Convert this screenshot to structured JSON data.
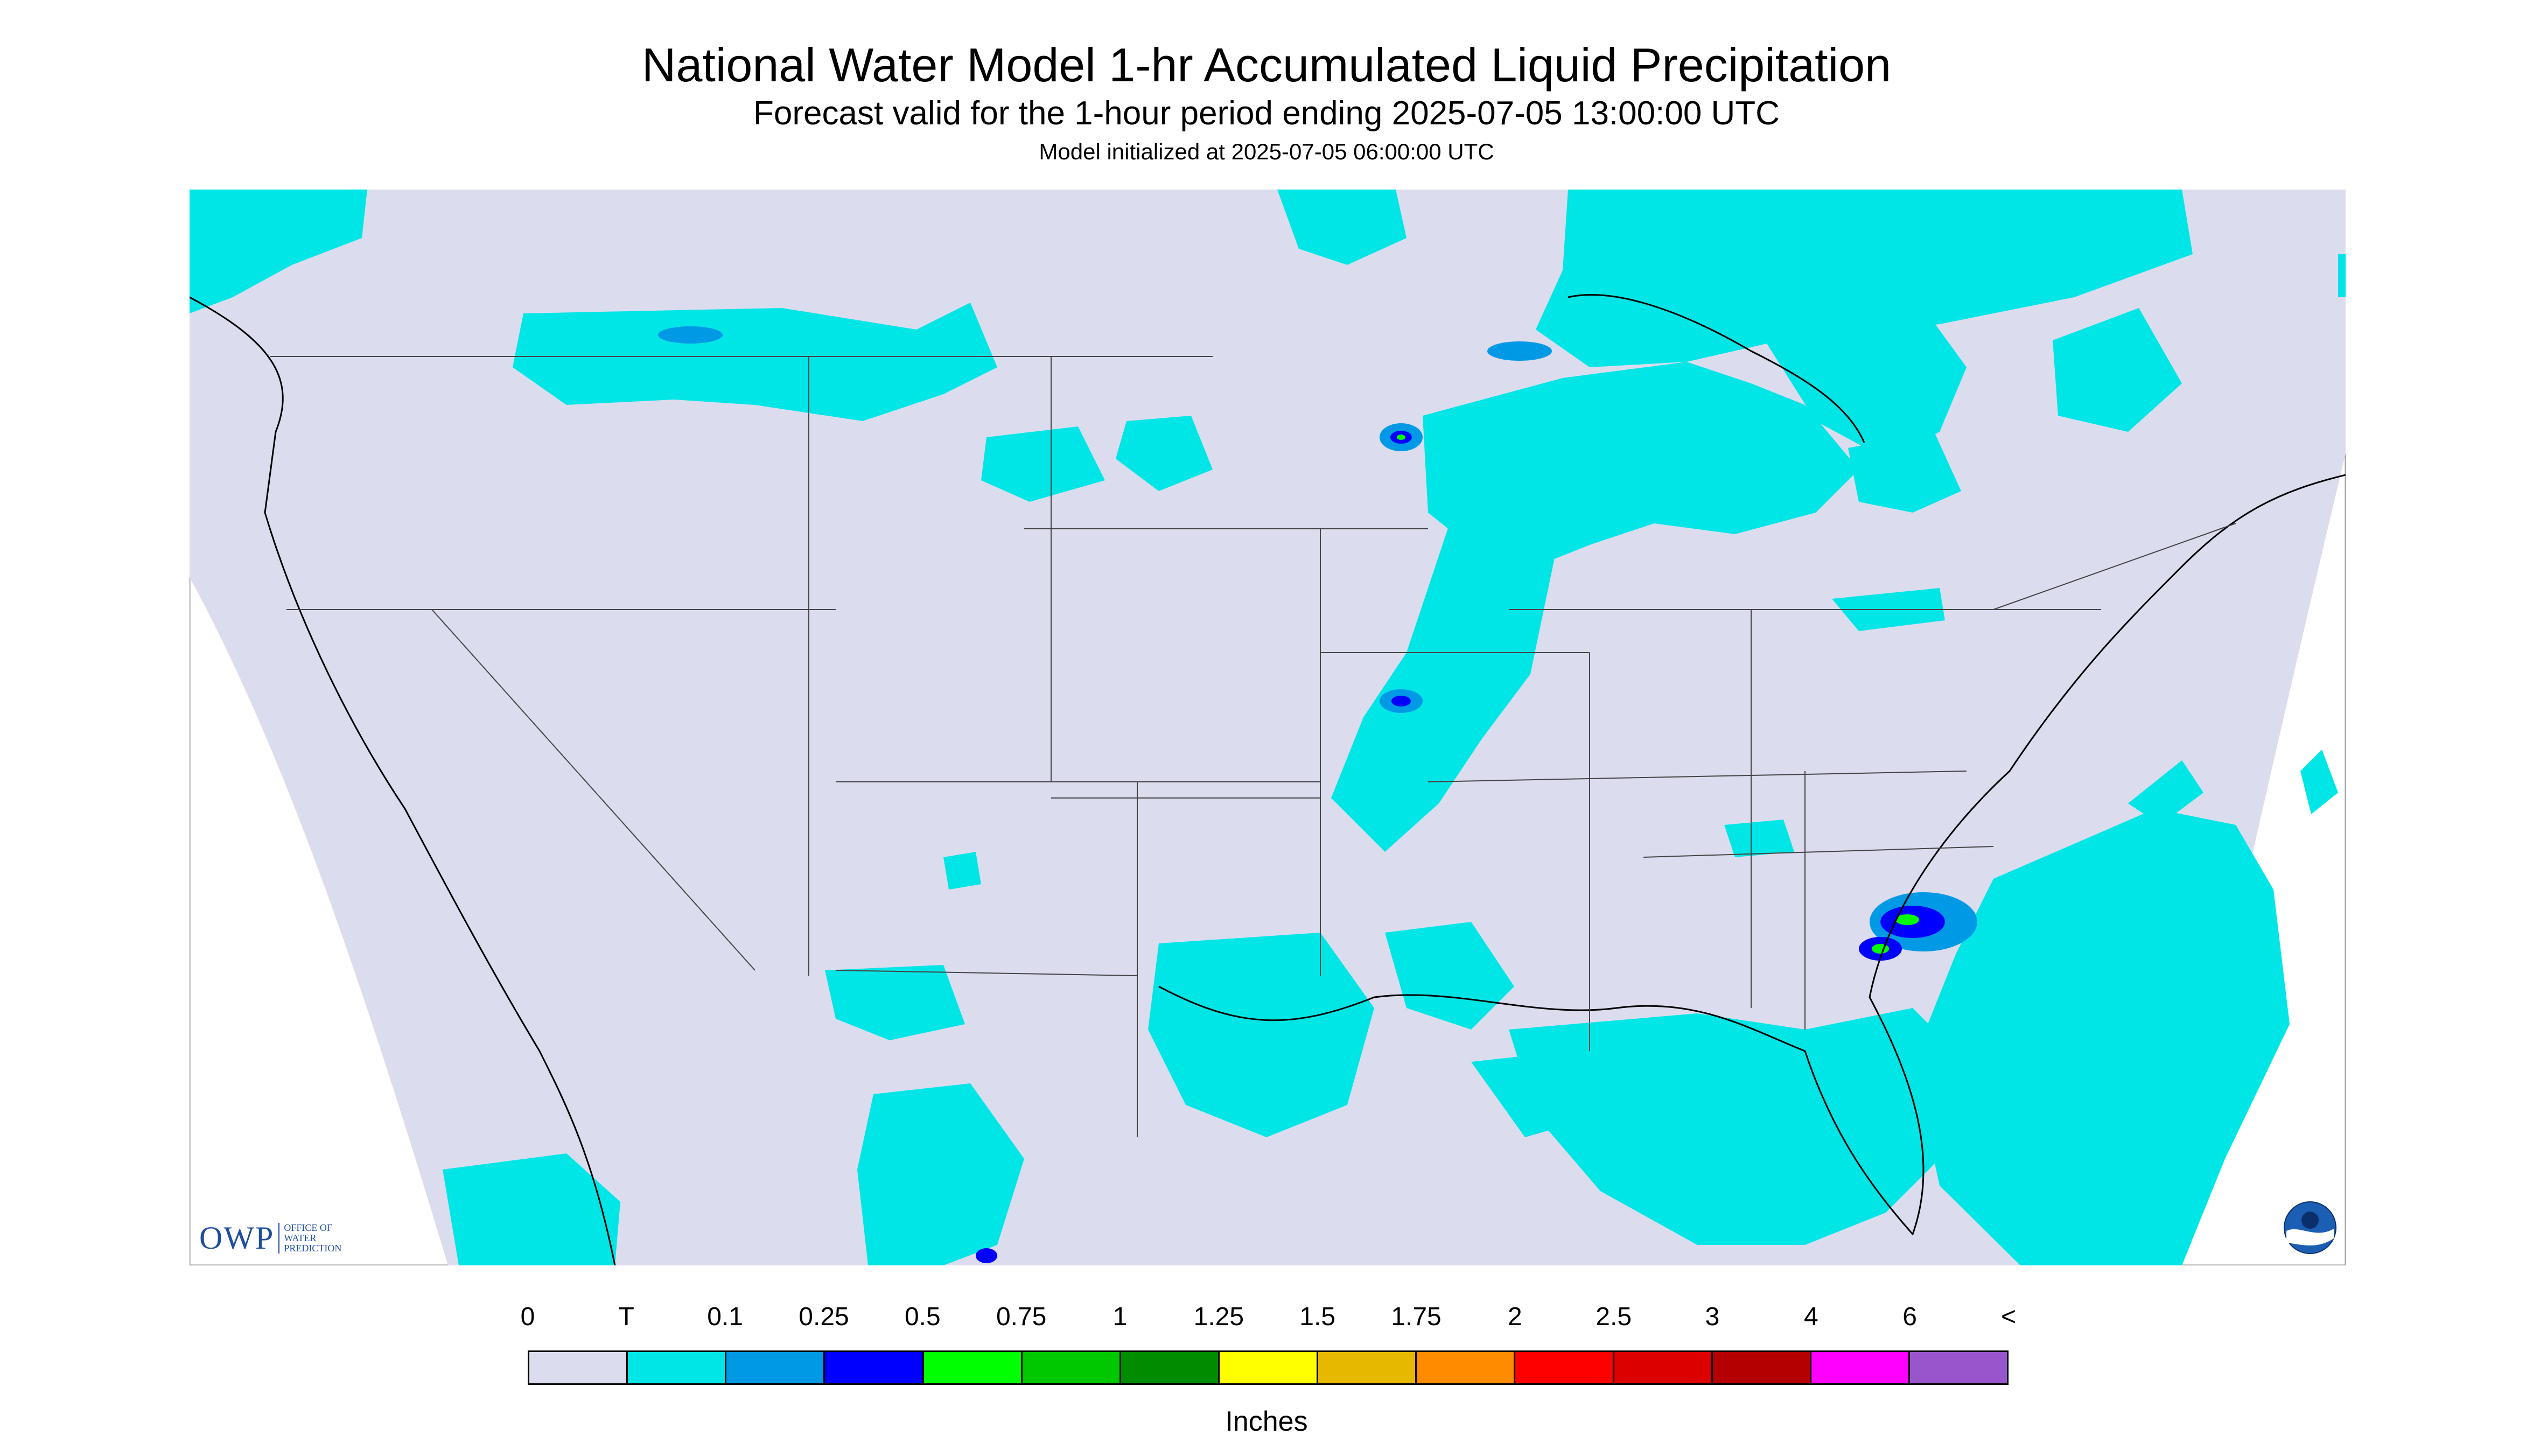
{
  "header": {
    "title": "National Water Model 1-hr Accumulated Liquid Precipitation",
    "subtitle": "Forecast valid for the 1-hour period ending 2025-07-05 13:00:00 UTC",
    "init": "Model initialized at 2025-07-05 06:00:00 UTC"
  },
  "colors": {
    "background": "#dcdcef",
    "trace": "#00e6e6",
    "light_blue": "#0099e6",
    "blue": "#0000ff",
    "green": "#00ff00"
  },
  "logos": {
    "owp_mark": "OWP",
    "owp_text": "OFFICE OF WATER PREDICTION",
    "noaa": "NOAA"
  },
  "legend": {
    "ticks": [
      "0",
      "T",
      "0.1",
      "0.25",
      "0.5",
      "0.75",
      "1",
      "1.25",
      "1.5",
      "1.75",
      "2",
      "2.5",
      "3",
      "4",
      "6",
      "<"
    ],
    "colors": [
      "#dcdcef",
      "#00e6e6",
      "#0099e6",
      "#0000ff",
      "#00ff00",
      "#00c800",
      "#008c00",
      "#ffff00",
      "#e6b800",
      "#ff8c00",
      "#ff0000",
      "#dc0000",
      "#b40000",
      "#ff00ff",
      "#9955cc"
    ],
    "units": "Inches"
  }
}
